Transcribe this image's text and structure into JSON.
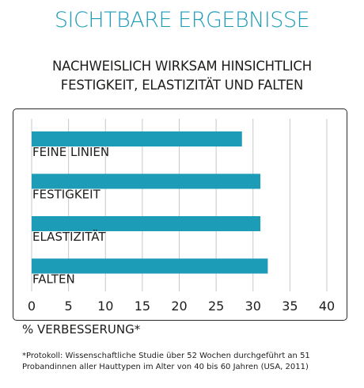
{
  "title": "SICHTBARE ERGEBNISSE",
  "subtitle_line1": "NACHWEISLICH WIRKSAM HINSICHTLICH",
  "subtitle_line2": "FESTIGKEIT, ELASTIZITÄT UND FALTEN",
  "footnote_line1": "*Protokoll: Wissenschaftliche Studie über 52 Wochen durchgeführt an 51",
  "footnote_line2": "Probandinnen aller Hauttypen im Alter von 40 bis 60 Jahren (USA, 2011)",
  "colors": {
    "bar": "#1d9cb8",
    "title": "#1d9cb8",
    "grid": "#c8c8c8"
  },
  "chart_data": {
    "type": "bar",
    "orientation": "horizontal",
    "categories": [
      "FEINE LINIEN",
      "FESTIGKEIT",
      "ELASTIZITÄT",
      "FALTEN"
    ],
    "values": [
      28.5,
      31,
      31,
      32
    ],
    "xlabel": "% VERBESSERUNG*",
    "xlim": [
      0,
      40
    ],
    "xticks": [
      "0",
      "5",
      "10",
      "15",
      "20",
      "25",
      "30",
      "35",
      "40"
    ],
    "grid": true
  }
}
